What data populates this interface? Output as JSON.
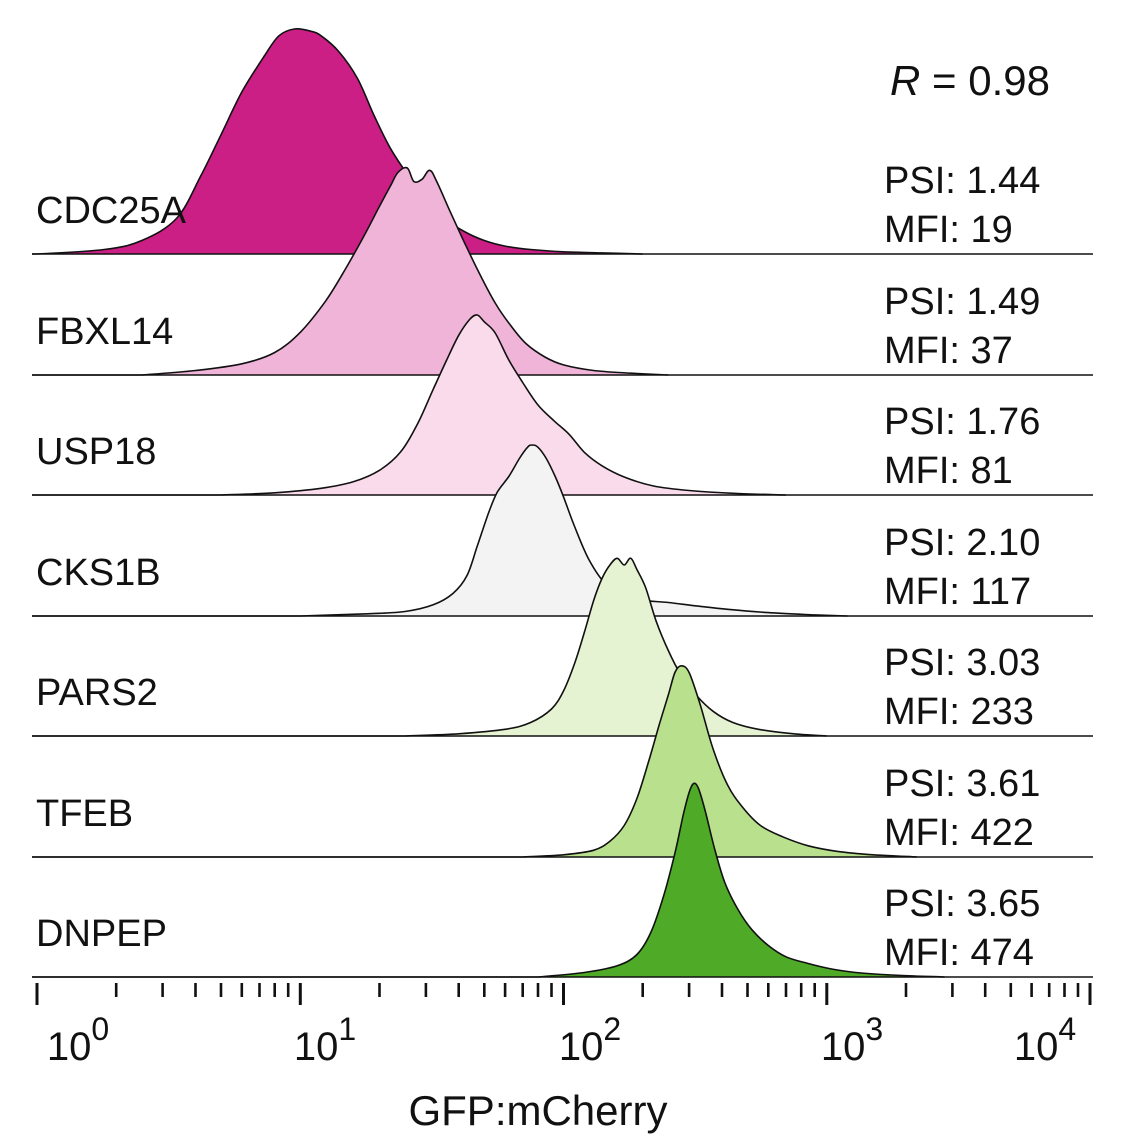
{
  "chart_data": {
    "type": "area",
    "subtype": "stacked-histogram",
    "xlabel": "GFP:mCherry",
    "xscale": "log10",
    "xlim": [
      1,
      10000
    ],
    "x_ticks": [
      {
        "base": "10",
        "exp": "0"
      },
      {
        "base": "10",
        "exp": "1"
      },
      {
        "base": "10",
        "exp": "2"
      },
      {
        "base": "10",
        "exp": "3"
      },
      {
        "base": "10",
        "exp": "4"
      }
    ],
    "annotation": {
      "italic": "R",
      "rest": " = 0.98"
    },
    "series": [
      {
        "name": "CDC25A",
        "psi": "PSI: 1.44",
        "mfi": "MFI: 19",
        "color": "#cc1f86",
        "curve": [
          [
            1,
            0.0
          ],
          [
            1.8,
            0.02
          ],
          [
            2.5,
            0.06
          ],
          [
            3.4,
            0.16
          ],
          [
            4.2,
            0.35
          ],
          [
            5.0,
            0.53
          ],
          [
            6.0,
            0.72
          ],
          [
            7.3,
            0.88
          ],
          [
            8.3,
            0.97
          ],
          [
            9.5,
            1.0
          ],
          [
            11,
            0.99
          ],
          [
            12,
            0.97
          ],
          [
            14,
            0.9
          ],
          [
            16.5,
            0.78
          ],
          [
            19,
            0.62
          ],
          [
            22,
            0.47
          ],
          [
            26,
            0.34
          ],
          [
            30,
            0.24
          ],
          [
            35,
            0.16
          ],
          [
            42,
            0.1
          ],
          [
            50,
            0.06
          ],
          [
            60,
            0.035
          ],
          [
            75,
            0.02
          ],
          [
            100,
            0.01
          ],
          [
            140,
            0.005
          ],
          [
            200,
            0.0
          ]
        ]
      },
      {
        "name": "FBXL14",
        "psi": "PSI: 1.49",
        "mfi": "MFI: 37",
        "color": "#efb4d8",
        "curve": [
          [
            2.5,
            0.0
          ],
          [
            4,
            0.02
          ],
          [
            6,
            0.05
          ],
          [
            8,
            0.1
          ],
          [
            10,
            0.19
          ],
          [
            12.5,
            0.33
          ],
          [
            15,
            0.48
          ],
          [
            17.5,
            0.62
          ],
          [
            20,
            0.75
          ],
          [
            22,
            0.84
          ],
          [
            23.5,
            0.9
          ],
          [
            25.5,
            0.92
          ],
          [
            27,
            0.86
          ],
          [
            29,
            0.87
          ],
          [
            31,
            0.91
          ],
          [
            33,
            0.86
          ],
          [
            37,
            0.73
          ],
          [
            42,
            0.59
          ],
          [
            48,
            0.45
          ],
          [
            55,
            0.32
          ],
          [
            63,
            0.22
          ],
          [
            72,
            0.14
          ],
          [
            85,
            0.08
          ],
          [
            100,
            0.045
          ],
          [
            130,
            0.02
          ],
          [
            180,
            0.008
          ],
          [
            250,
            0.0
          ]
        ]
      },
      {
        "name": "USP18",
        "psi": "PSI: 1.76",
        "mfi": "MFI: 81",
        "color": "#fadbeb",
        "curve": [
          [
            5,
            0.0
          ],
          [
            8,
            0.01
          ],
          [
            12,
            0.03
          ],
          [
            16,
            0.06
          ],
          [
            20,
            0.11
          ],
          [
            24,
            0.19
          ],
          [
            28,
            0.32
          ],
          [
            32,
            0.47
          ],
          [
            36,
            0.6
          ],
          [
            40,
            0.71
          ],
          [
            44,
            0.78
          ],
          [
            47,
            0.8
          ],
          [
            50,
            0.77
          ],
          [
            55,
            0.72
          ],
          [
            62,
            0.6
          ],
          [
            70,
            0.5
          ],
          [
            80,
            0.4
          ],
          [
            92,
            0.33
          ],
          [
            105,
            0.27
          ],
          [
            120,
            0.19
          ],
          [
            140,
            0.13
          ],
          [
            170,
            0.08
          ],
          [
            220,
            0.04
          ],
          [
            300,
            0.02
          ],
          [
            450,
            0.007
          ],
          [
            700,
            0.0
          ]
        ]
      },
      {
        "name": "CKS1B",
        "psi": "PSI: 2.10",
        "mfi": "MFI: 117",
        "color": "#f3f3f3",
        "curve": [
          [
            10,
            0.0
          ],
          [
            18,
            0.01
          ],
          [
            25,
            0.02
          ],
          [
            32,
            0.05
          ],
          [
            38,
            0.1
          ],
          [
            43,
            0.18
          ],
          [
            47,
            0.31
          ],
          [
            52,
            0.46
          ],
          [
            56,
            0.55
          ],
          [
            62,
            0.62
          ],
          [
            68,
            0.7
          ],
          [
            73,
            0.75
          ],
          [
            76,
            0.76
          ],
          [
            80,
            0.75
          ],
          [
            86,
            0.7
          ],
          [
            93,
            0.62
          ],
          [
            100,
            0.53
          ],
          [
            110,
            0.4
          ],
          [
            125,
            0.25
          ],
          [
            145,
            0.14
          ],
          [
            170,
            0.09
          ],
          [
            200,
            0.07
          ],
          [
            250,
            0.06
          ],
          [
            320,
            0.045
          ],
          [
            420,
            0.03
          ],
          [
            600,
            0.015
          ],
          [
            900,
            0.005
          ],
          [
            1200,
            0.0
          ]
        ]
      },
      {
        "name": "PARS2",
        "psi": "PSI: 3.03",
        "mfi": "MFI: 233",
        "color": "#e6f3d2",
        "curve": [
          [
            25,
            0.0
          ],
          [
            40,
            0.01
          ],
          [
            60,
            0.03
          ],
          [
            75,
            0.06
          ],
          [
            90,
            0.12
          ],
          [
            100,
            0.2
          ],
          [
            110,
            0.32
          ],
          [
            120,
            0.46
          ],
          [
            130,
            0.6
          ],
          [
            140,
            0.7
          ],
          [
            150,
            0.76
          ],
          [
            160,
            0.79
          ],
          [
            170,
            0.76
          ],
          [
            180,
            0.79
          ],
          [
            190,
            0.74
          ],
          [
            205,
            0.66
          ],
          [
            225,
            0.51
          ],
          [
            250,
            0.38
          ],
          [
            280,
            0.27
          ],
          [
            320,
            0.18
          ],
          [
            370,
            0.11
          ],
          [
            440,
            0.06
          ],
          [
            550,
            0.03
          ],
          [
            750,
            0.01
          ],
          [
            1000,
            0.0
          ]
        ]
      },
      {
        "name": "TFEB",
        "psi": "PSI: 3.61",
        "mfi": "MFI: 422",
        "color": "#b9e08d",
        "curve": [
          [
            70,
            0.0
          ],
          [
            100,
            0.01
          ],
          [
            130,
            0.03
          ],
          [
            150,
            0.07
          ],
          [
            170,
            0.14
          ],
          [
            190,
            0.26
          ],
          [
            210,
            0.42
          ],
          [
            230,
            0.58
          ],
          [
            250,
            0.72
          ],
          [
            265,
            0.82
          ],
          [
            280,
            0.85
          ],
          [
            300,
            0.82
          ],
          [
            330,
            0.68
          ],
          [
            370,
            0.48
          ],
          [
            420,
            0.32
          ],
          [
            480,
            0.22
          ],
          [
            560,
            0.14
          ],
          [
            680,
            0.09
          ],
          [
            850,
            0.05
          ],
          [
            1100,
            0.025
          ],
          [
            1500,
            0.01
          ],
          [
            2200,
            0.0
          ]
        ]
      },
      {
        "name": "DNPEP",
        "psi": "PSI: 3.65",
        "mfi": "MFI: 474",
        "color": "#4eaa27",
        "curve": [
          [
            80,
            0.0
          ],
          [
            120,
            0.02
          ],
          [
            160,
            0.05
          ],
          [
            190,
            0.1
          ],
          [
            215,
            0.2
          ],
          [
            240,
            0.36
          ],
          [
            265,
            0.55
          ],
          [
            285,
            0.72
          ],
          [
            300,
            0.82
          ],
          [
            312,
            0.86
          ],
          [
            325,
            0.84
          ],
          [
            345,
            0.74
          ],
          [
            375,
            0.57
          ],
          [
            410,
            0.42
          ],
          [
            460,
            0.3
          ],
          [
            520,
            0.21
          ],
          [
            600,
            0.14
          ],
          [
            700,
            0.09
          ],
          [
            850,
            0.06
          ],
          [
            1050,
            0.035
          ],
          [
            1350,
            0.018
          ],
          [
            1900,
            0.007
          ],
          [
            2800,
            0.0
          ]
        ]
      }
    ]
  }
}
